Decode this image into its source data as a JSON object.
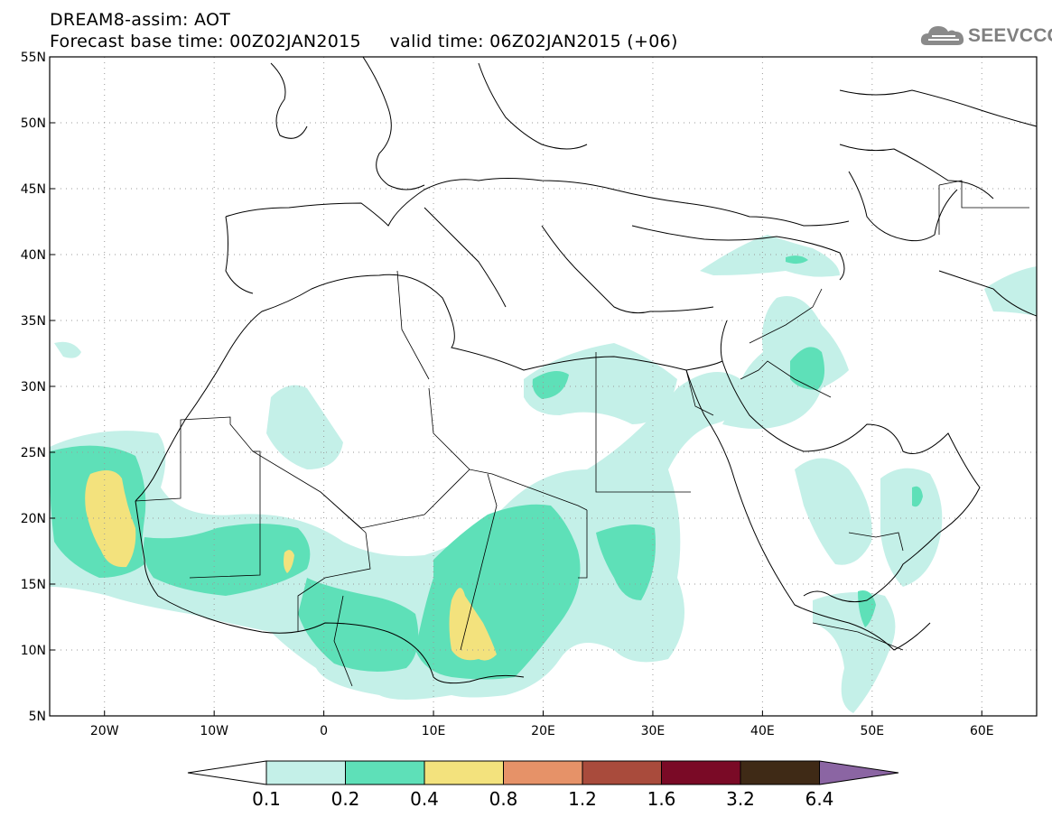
{
  "title": {
    "line1": "DREAM8-assim: AOT",
    "line2": "Forecast base time: 00Z02JAN2015     valid time: 06Z02JAN2015 (+06)"
  },
  "logo": {
    "text": "SEEVCCC",
    "icon": "cloud-logo-icon",
    "color": "#808080"
  },
  "map": {
    "lat_range": [
      5,
      55
    ],
    "lon_range": [
      -25,
      65
    ],
    "lat_ticks": [
      "55N",
      "50N",
      "45N",
      "40N",
      "35N",
      "30N",
      "25N",
      "20N",
      "15N",
      "10N",
      "5N"
    ],
    "lon_ticks": [
      "20W",
      "10W",
      "0",
      "10E",
      "20E",
      "30E",
      "40E",
      "50E",
      "60E"
    ],
    "grid": "dotted"
  },
  "colorbar": {
    "labels": [
      "0.1",
      "0.2",
      "0.4",
      "0.8",
      "1.2",
      "1.6",
      "3.2",
      "6.4"
    ],
    "colors": [
      "#ffffff",
      "#c4f0e8",
      "#5ee0b8",
      "#f3e27d",
      "#e69268",
      "#a94b3c",
      "#7a0a26",
      "#3f2a16",
      "#8b65a3"
    ]
  }
}
